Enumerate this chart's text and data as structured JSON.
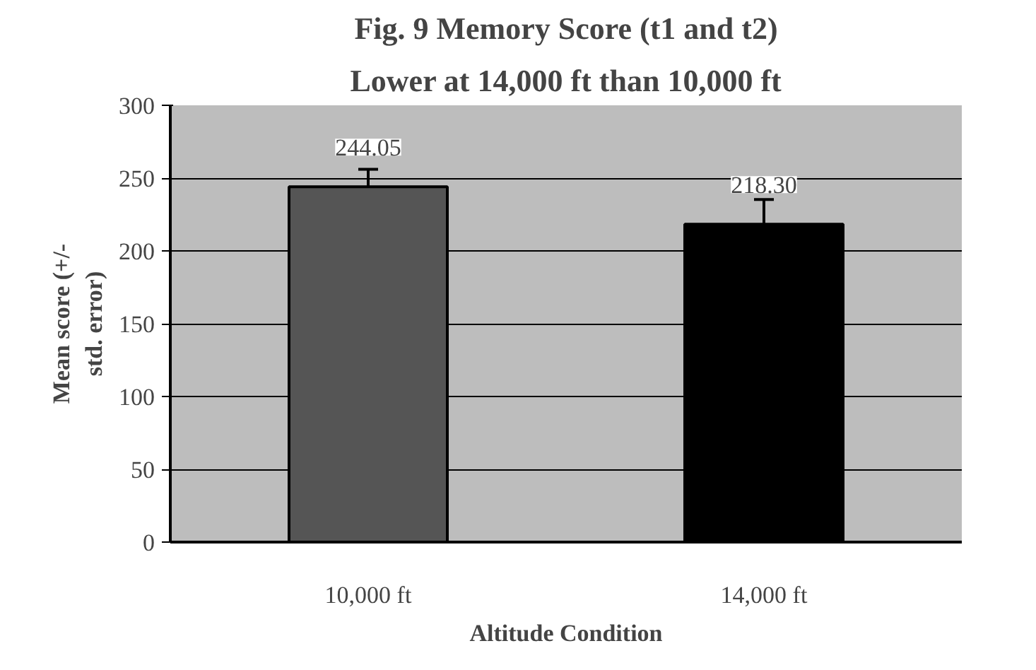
{
  "chart_data": {
    "type": "bar",
    "title": "Fig. 9 Memory Score (t1 and t2)",
    "subtitle": "Lower at 14,000 ft than 10,000 ft",
    "xlabel": "Altitude Condition",
    "ylabel": "Mean score (+/- std. error)",
    "categories": [
      "10,000 ft",
      "14,000 ft"
    ],
    "values": [
      244.05,
      218.3
    ],
    "colors": [
      "#555555",
      "#000000"
    ],
    "errors": [
      12,
      17
    ],
    "value_labels": [
      "244.05",
      "218.30"
    ],
    "ylim": [
      0,
      300
    ],
    "yticks": [
      0,
      50,
      100,
      150,
      200,
      250,
      300
    ],
    "grid": "y"
  }
}
